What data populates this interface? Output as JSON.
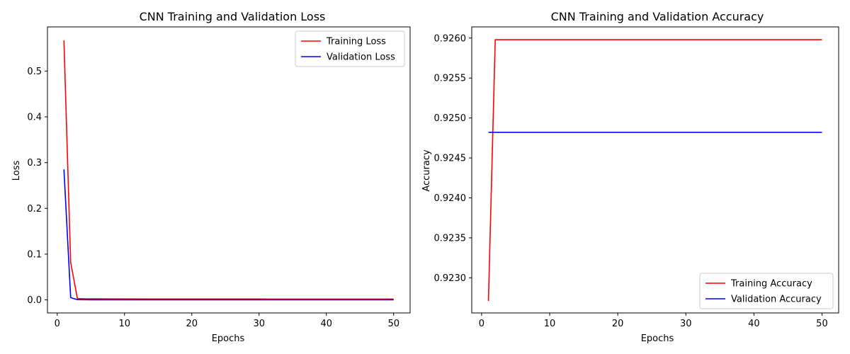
{
  "chart_data": [
    {
      "type": "line",
      "title": "CNN Training and Validation Loss",
      "xlabel": "Epochs",
      "ylabel": "Loss",
      "xlim": [
        -1.45,
        52.45
      ],
      "ylim": [
        -0.0285,
        0.5965
      ],
      "xticks": [
        0,
        10,
        20,
        30,
        40,
        50
      ],
      "yticks": [
        0.0,
        0.1,
        0.2,
        0.3,
        0.4,
        0.5
      ],
      "ytick_labels": [
        "0.0",
        "0.1",
        "0.2",
        "0.3",
        "0.4",
        "0.5"
      ],
      "grid": false,
      "legend_position": "upper right",
      "series": [
        {
          "name": "Training Loss",
          "color": "#ff0000",
          "x": [
            1,
            2,
            3,
            4,
            5,
            6,
            8,
            10,
            15,
            20,
            25,
            30,
            35,
            40,
            45,
            50
          ],
          "y": [
            0.567,
            0.082,
            0.003,
            0.0025,
            0.0024,
            0.0023,
            0.0022,
            0.0021,
            0.002,
            0.002,
            0.0019,
            0.0019,
            0.0018,
            0.0018,
            0.0018,
            0.0018
          ]
        },
        {
          "name": "Validation Loss",
          "color": "#0000ff",
          "x": [
            1,
            2,
            3,
            4,
            5,
            6,
            8,
            10,
            15,
            20,
            25,
            30,
            35,
            40,
            45,
            50
          ],
          "y": [
            0.285,
            0.005,
            0.0005,
            0.0003,
            0.0002,
            0.0002,
            0.0002,
            0.0001,
            0.0001,
            0.0001,
            0.0001,
            0.0001,
            0.0001,
            0.0001,
            0.0001,
            0.0001
          ]
        }
      ]
    },
    {
      "type": "line",
      "title": "CNN Training and Validation Accuracy",
      "xlabel": "Epochs",
      "ylabel": "Accuracy",
      "xlim": [
        -1.45,
        52.45
      ],
      "ylim": [
        0.92256,
        0.92614
      ],
      "xticks": [
        0,
        10,
        20,
        30,
        40,
        50
      ],
      "yticks": [
        0.923,
        0.9235,
        0.924,
        0.9245,
        0.925,
        0.9255,
        0.926
      ],
      "ytick_labels": [
        "0.9230",
        "0.9235",
        "0.9240",
        "0.9245",
        "0.9250",
        "0.9255",
        "0.9260"
      ],
      "grid": false,
      "legend_position": "lower right",
      "series": [
        {
          "name": "Training Accuracy",
          "color": "#ff0000",
          "x": [
            1,
            2,
            50
          ],
          "y": [
            0.92271,
            0.92598,
            0.92598
          ]
        },
        {
          "name": "Validation Accuracy",
          "color": "#0000ff",
          "x": [
            1,
            50
          ],
          "y": [
            0.92482,
            0.92482
          ]
        }
      ]
    }
  ]
}
